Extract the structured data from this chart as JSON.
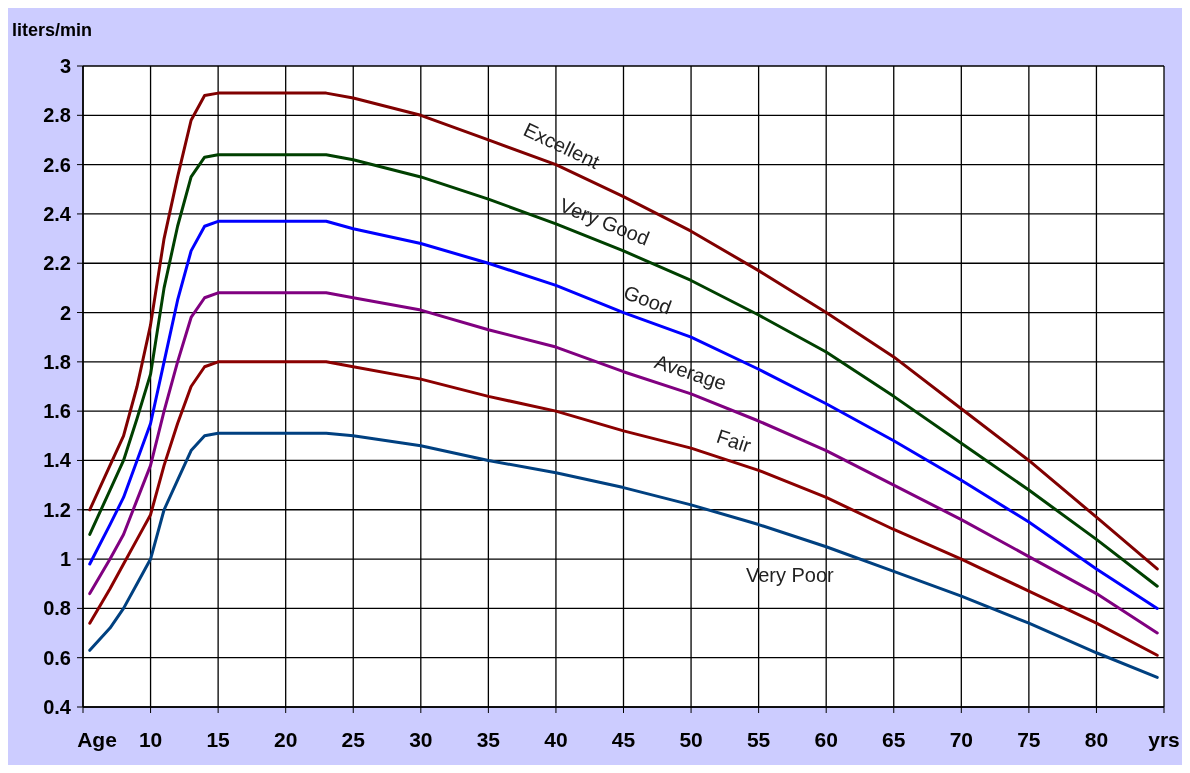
{
  "chart_data": {
    "type": "line",
    "ylabel": "liters/min",
    "x": [
      5.5,
      7,
      8,
      9,
      10,
      11,
      12,
      13,
      14,
      15,
      23,
      25,
      30,
      35,
      40,
      45,
      50,
      55,
      60,
      65,
      70,
      75,
      80,
      84.5
    ],
    "series": [
      {
        "name": "Excellent",
        "color": "#800000",
        "values": [
          1.2,
          1.38,
          1.5,
          1.7,
          1.95,
          2.3,
          2.55,
          2.78,
          2.88,
          2.89,
          2.89,
          2.87,
          2.8,
          2.7,
          2.6,
          2.47,
          2.33,
          2.17,
          2.0,
          1.82,
          1.61,
          1.4,
          1.17,
          0.96
        ]
      },
      {
        "name": "Very Good",
        "color": "#004000",
        "values": [
          1.1,
          1.28,
          1.4,
          1.57,
          1.75,
          2.1,
          2.35,
          2.55,
          2.63,
          2.64,
          2.64,
          2.62,
          2.55,
          2.46,
          2.36,
          2.25,
          2.13,
          1.99,
          1.84,
          1.66,
          1.47,
          1.28,
          1.08,
          0.89
        ]
      },
      {
        "name": "Good",
        "color": "#0000ff",
        "values": [
          0.98,
          1.14,
          1.25,
          1.4,
          1.55,
          1.8,
          2.05,
          2.25,
          2.35,
          2.37,
          2.37,
          2.34,
          2.28,
          2.2,
          2.11,
          2.0,
          1.9,
          1.77,
          1.63,
          1.48,
          1.32,
          1.15,
          0.96,
          0.8
        ]
      },
      {
        "name": "Average",
        "color": "#800080",
        "values": [
          0.86,
          1.0,
          1.1,
          1.24,
          1.38,
          1.6,
          1.8,
          1.98,
          2.06,
          2.08,
          2.08,
          2.06,
          2.01,
          1.93,
          1.86,
          1.76,
          1.67,
          1.56,
          1.44,
          1.3,
          1.16,
          1.01,
          0.86,
          0.7
        ]
      },
      {
        "name": "Fair",
        "color": "#8b0000",
        "values": [
          0.74,
          0.88,
          0.98,
          1.08,
          1.18,
          1.38,
          1.55,
          1.7,
          1.78,
          1.8,
          1.8,
          1.78,
          1.73,
          1.66,
          1.6,
          1.52,
          1.45,
          1.36,
          1.25,
          1.12,
          1.0,
          0.87,
          0.74,
          0.61
        ]
      },
      {
        "name": "Very Poor",
        "color": "#004080",
        "values": [
          0.63,
          0.72,
          0.8,
          0.9,
          1.0,
          1.2,
          1.32,
          1.44,
          1.5,
          1.51,
          1.51,
          1.5,
          1.46,
          1.4,
          1.35,
          1.29,
          1.22,
          1.14,
          1.05,
          0.95,
          0.85,
          0.74,
          0.62,
          0.52
        ]
      }
    ],
    "xlim": [
      5,
      85
    ],
    "xticks": [
      {
        "value": 5,
        "label": "Age"
      },
      10,
      15,
      20,
      25,
      30,
      35,
      40,
      45,
      50,
      55,
      60,
      65,
      70,
      75,
      80,
      {
        "value": 85,
        "label": "yrs"
      }
    ],
    "ylim": [
      0.4,
      3
    ],
    "yticks": [
      0.4,
      0.6,
      0.8,
      1,
      1.2,
      1.4,
      1.6,
      1.8,
      2,
      2.2,
      2.4,
      2.6,
      2.8,
      3
    ],
    "grid": true,
    "marker": "none",
    "line_style": "solid"
  }
}
